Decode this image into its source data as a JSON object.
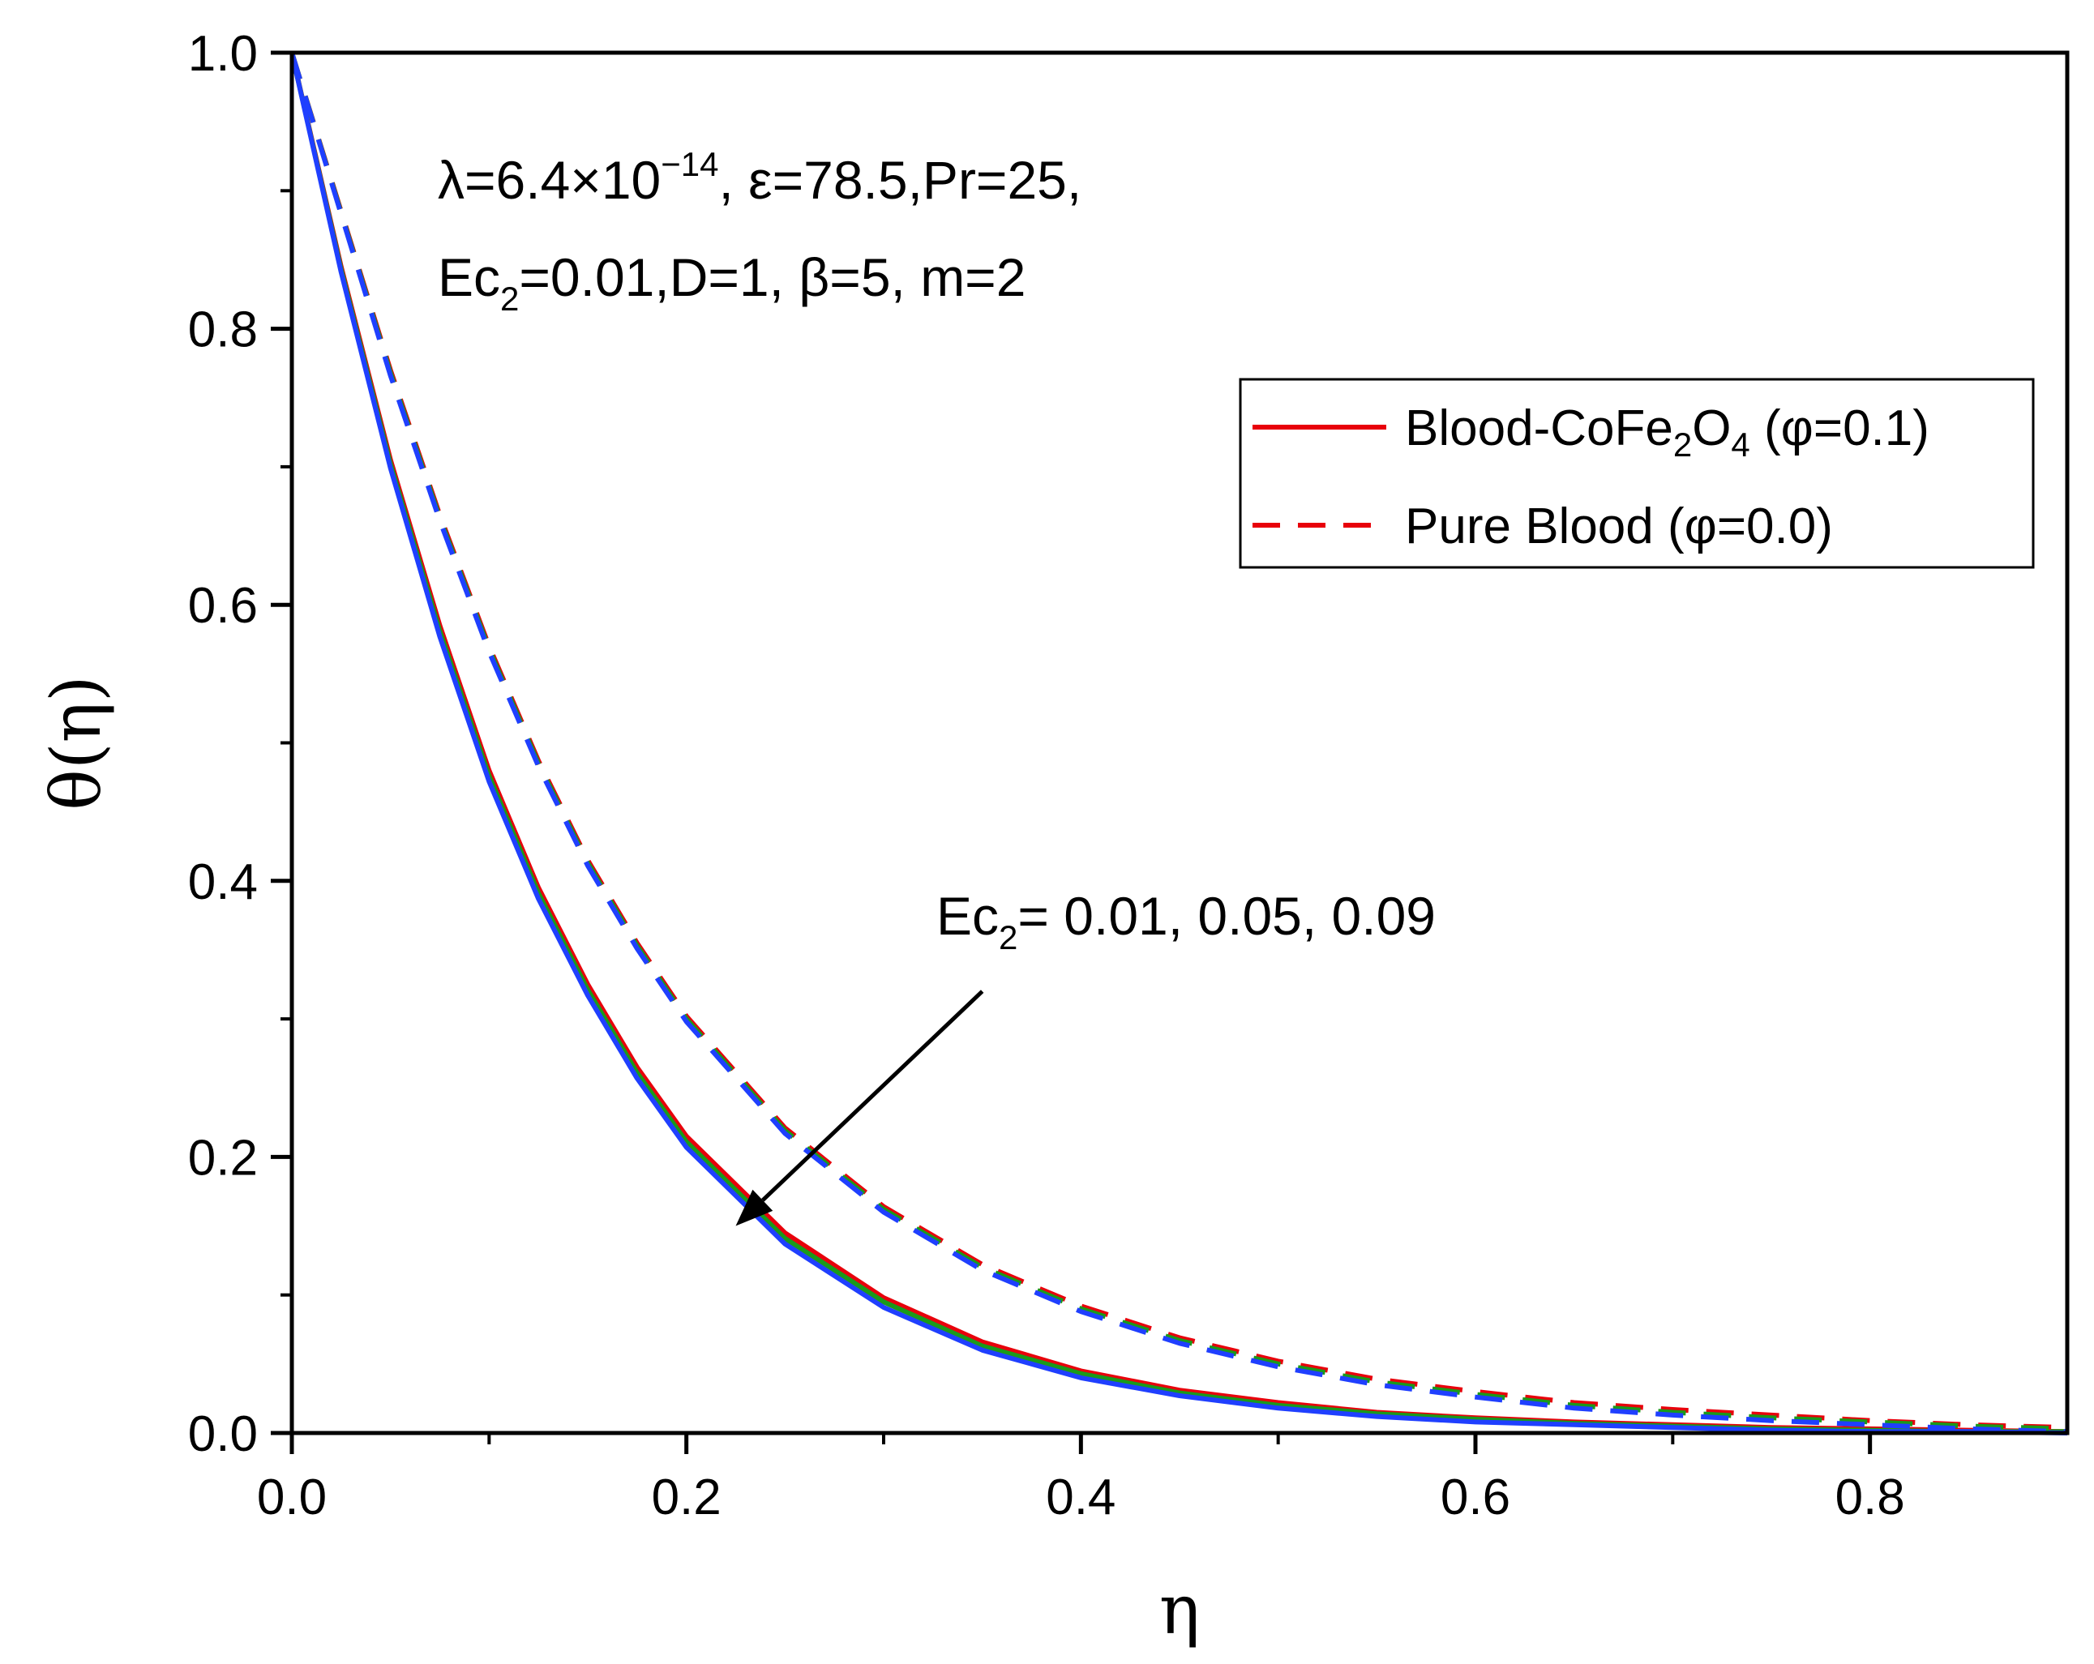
{
  "chart_data": {
    "type": "line",
    "xlabel": "η",
    "ylabel": "θ(η)",
    "xlim": [
      0,
      0.9
    ],
    "ylim": [
      0,
      1.0
    ],
    "x_ticks": [
      "0.0",
      "0.2",
      "0.4",
      "0.6",
      "0.8"
    ],
    "y_ticks": [
      "0.0",
      "0.2",
      "0.4",
      "0.6",
      "0.8",
      "1.0"
    ],
    "grid": false,
    "legend_position": "top-right",
    "legend": [
      {
        "style": "solid",
        "color": "#e8000b",
        "parts": [
          "Blood-CoFe",
          "2",
          "O",
          "4",
          " (φ=0.1)"
        ]
      },
      {
        "style": "dashed",
        "color": "#e8000b",
        "text": "Pure Blood (φ=0.0)"
      }
    ],
    "parameters": {
      "line1": {
        "a": "λ=6.4×10",
        "sup": "−14",
        "b": ", ε=78.5,Pr=25,"
      },
      "line2": {
        "a": "Ec",
        "sub": "2",
        "b": "=0.01,D=1, β=5, m=2"
      }
    },
    "annotation": {
      "a": "Ec",
      "sub": "2",
      "b": "= 0.01, 0.05, 0.09",
      "arrow_from": [
        0.35,
        0.32
      ],
      "arrow_to": [
        0.225,
        0.15
      ]
    },
    "colors": {
      "red": "#e8000b",
      "green": "#1a9a1a",
      "blue": "#1f3fff"
    },
    "x": [
      0,
      0.025,
      0.05,
      0.075,
      0.1,
      0.125,
      0.15,
      0.175,
      0.2,
      0.25,
      0.3,
      0.35,
      0.4,
      0.45,
      0.5,
      0.55,
      0.6,
      0.65,
      0.7,
      0.75,
      0.8,
      0.85,
      0.9
    ],
    "series": [
      {
        "style": "solid",
        "color": "#e8000b",
        "values": [
          1.0,
          0.845,
          0.705,
          0.585,
          0.48,
          0.395,
          0.325,
          0.265,
          0.215,
          0.145,
          0.098,
          0.066,
          0.045,
          0.031,
          0.022,
          0.015,
          0.011,
          0.008,
          0.006,
          0.004,
          0.003,
          0.002,
          0.001
        ]
      },
      {
        "style": "solid",
        "color": "#1a9a1a",
        "values": [
          1.0,
          0.843,
          0.702,
          0.581,
          0.476,
          0.391,
          0.321,
          0.261,
          0.211,
          0.141,
          0.095,
          0.063,
          0.043,
          0.029,
          0.02,
          0.014,
          0.01,
          0.007,
          0.005,
          0.003,
          0.002,
          0.001,
          0.001
        ]
      },
      {
        "style": "solid",
        "color": "#1f3fff",
        "values": [
          1.0,
          0.841,
          0.699,
          0.577,
          0.472,
          0.387,
          0.317,
          0.257,
          0.207,
          0.137,
          0.091,
          0.06,
          0.04,
          0.027,
          0.018,
          0.012,
          0.008,
          0.006,
          0.004,
          0.002,
          0.001,
          0.001,
          0.0
        ]
      },
      {
        "style": "dashed",
        "color": "#e8000b",
        "values": [
          1.0,
          0.885,
          0.77,
          0.665,
          0.57,
          0.487,
          0.415,
          0.355,
          0.302,
          0.221,
          0.164,
          0.122,
          0.092,
          0.069,
          0.052,
          0.039,
          0.03,
          0.022,
          0.017,
          0.013,
          0.009,
          0.006,
          0.004
        ]
      },
      {
        "style": "dashed",
        "color": "#1a9a1a",
        "values": [
          1.0,
          0.884,
          0.768,
          0.663,
          0.568,
          0.485,
          0.413,
          0.353,
          0.3,
          0.219,
          0.162,
          0.12,
          0.09,
          0.067,
          0.05,
          0.037,
          0.028,
          0.02,
          0.015,
          0.011,
          0.008,
          0.005,
          0.003
        ]
      },
      {
        "style": "dashed",
        "color": "#1f3fff",
        "values": [
          1.0,
          0.883,
          0.766,
          0.661,
          0.566,
          0.483,
          0.411,
          0.351,
          0.298,
          0.217,
          0.16,
          0.118,
          0.088,
          0.065,
          0.048,
          0.035,
          0.026,
          0.018,
          0.013,
          0.009,
          0.006,
          0.003,
          0.001
        ]
      }
    ]
  }
}
